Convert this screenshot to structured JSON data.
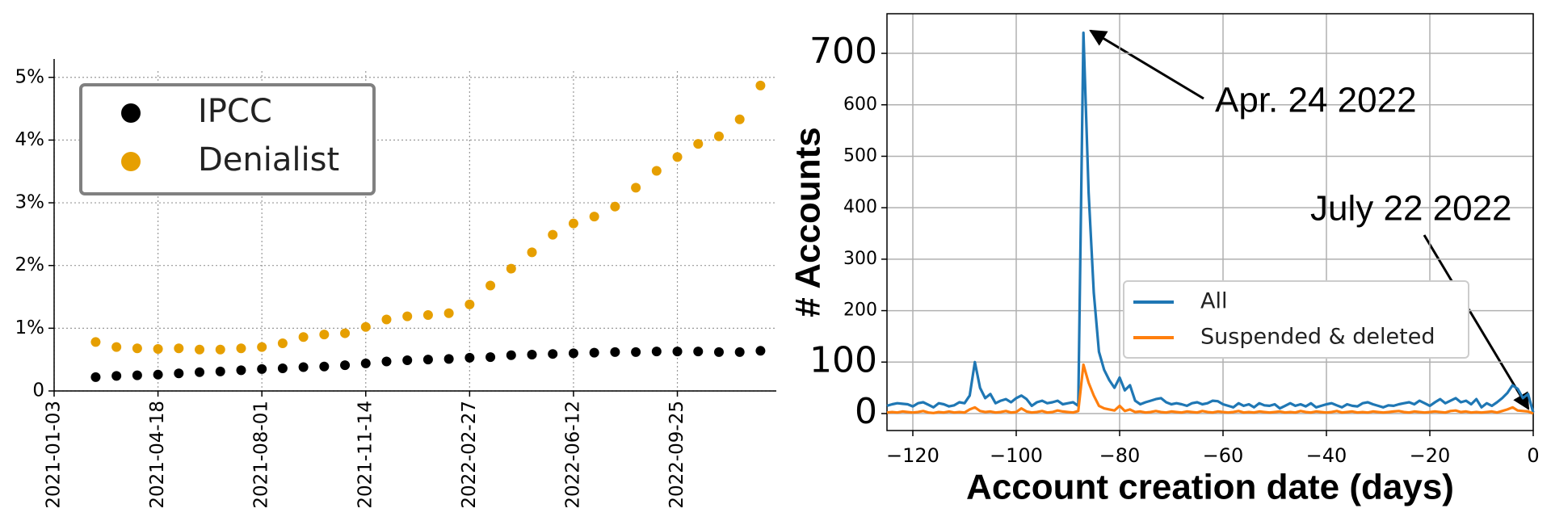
{
  "chart_data": [
    {
      "type": "scatter",
      "x": [
        "2021-02-14",
        "2021-03-07",
        "2021-03-28",
        "2021-04-18",
        "2021-05-09",
        "2021-05-30",
        "2021-06-20",
        "2021-07-11",
        "2021-08-01",
        "2021-08-22",
        "2021-09-12",
        "2021-10-03",
        "2021-10-24",
        "2021-11-14",
        "2021-12-05",
        "2021-12-26",
        "2022-01-16",
        "2022-02-06",
        "2022-02-27",
        "2022-03-20",
        "2022-04-10",
        "2022-05-01",
        "2022-05-22",
        "2022-06-12",
        "2022-07-03",
        "2022-07-24",
        "2022-08-14",
        "2022-09-04",
        "2022-09-25",
        "2022-10-16",
        "2022-11-06",
        "2022-11-27",
        "2022-12-18"
      ],
      "series": [
        {
          "name": "IPCC",
          "color": "#000000",
          "values": [
            0.22,
            0.24,
            0.25,
            0.26,
            0.28,
            0.3,
            0.31,
            0.33,
            0.35,
            0.36,
            0.38,
            0.39,
            0.41,
            0.44,
            0.47,
            0.49,
            0.5,
            0.51,
            0.53,
            0.54,
            0.57,
            0.58,
            0.59,
            0.6,
            0.61,
            0.62,
            0.62,
            0.63,
            0.63,
            0.63,
            0.62,
            0.62,
            0.64
          ]
        },
        {
          "name": "Denialist",
          "color": "#e69f00",
          "values": [
            0.78,
            0.7,
            0.68,
            0.67,
            0.68,
            0.66,
            0.66,
            0.68,
            0.7,
            0.76,
            0.86,
            0.9,
            0.92,
            1.02,
            1.14,
            1.19,
            1.21,
            1.24,
            1.38,
            1.68,
            1.95,
            2.21,
            2.49,
            2.67,
            2.78,
            2.94,
            3.24,
            3.51,
            3.73,
            3.94,
            4.06,
            4.33,
            4.87
          ]
        }
      ],
      "xlim": [
        "2021-01-03",
        "2023-01-03"
      ],
      "xticks": [
        "2021-01-03",
        "2021-04-18",
        "2021-08-01",
        "2021-11-14",
        "2022-02-27",
        "2022-06-12",
        "2022-09-25"
      ],
      "ylim": [
        0,
        5.1
      ],
      "yticks": [
        0,
        {
          "value": 1,
          "label": "1%"
        },
        {
          "value": 2,
          "label": "2%"
        },
        {
          "value": 3,
          "label": "3%"
        },
        {
          "value": 4,
          "label": "4%"
        },
        {
          "value": 5,
          "label": "5%"
        }
      ],
      "grid": true,
      "legend": "upper left"
    },
    {
      "type": "line",
      "x": [
        -125,
        -124,
        -123,
        -122,
        -121,
        -120,
        -119,
        -118,
        -117,
        -116,
        -115,
        -114,
        -113,
        -112,
        -111,
        -110,
        -109,
        -108,
        -107,
        -106,
        -105,
        -104,
        -103,
        -102,
        -101,
        -100,
        -99,
        -98,
        -97,
        -96,
        -95,
        -94,
        -93,
        -92,
        -91,
        -90,
        -89,
        -88,
        -87,
        -86,
        -85,
        -84,
        -83,
        -82,
        -81,
        -80,
        -79,
        -78,
        -77,
        -76,
        -75,
        -74,
        -73,
        -72,
        -71,
        -70,
        -69,
        -68,
        -67,
        -66,
        -65,
        -64,
        -63,
        -62,
        -61,
        -60,
        -59,
        -58,
        -57,
        -56,
        -55,
        -54,
        -53,
        -52,
        -51,
        -50,
        -49,
        -48,
        -47,
        -46,
        -45,
        -44,
        -43,
        -42,
        -41,
        -40,
        -39,
        -38,
        -37,
        -36,
        -35,
        -34,
        -33,
        -32,
        -31,
        -30,
        -29,
        -28,
        -27,
        -26,
        -25,
        -24,
        -23,
        -22,
        -21,
        -20,
        -19,
        -18,
        -17,
        -16,
        -15,
        -14,
        -13,
        -12,
        -11,
        -10,
        -9,
        -8,
        -7,
        -6,
        -5,
        -4,
        -3,
        -2,
        -1,
        0
      ],
      "series": [
        {
          "name": "All",
          "color": "#1f77b4",
          "values": [
            15,
            18,
            20,
            19,
            18,
            14,
            20,
            22,
            17,
            12,
            20,
            18,
            14,
            16,
            22,
            20,
            35,
            100,
            50,
            30,
            38,
            20,
            25,
            28,
            22,
            30,
            35,
            28,
            15,
            22,
            25,
            20,
            22,
            25,
            18,
            20,
            22,
            15,
            740,
            430,
            235,
            120,
            85,
            65,
            50,
            70,
            45,
            55,
            25,
            18,
            22,
            25,
            28,
            30,
            22,
            18,
            20,
            18,
            15,
            20,
            22,
            18,
            20,
            25,
            24,
            18,
            15,
            12,
            20,
            15,
            18,
            12,
            20,
            16,
            15,
            18,
            10,
            15,
            20,
            15,
            18,
            14,
            20,
            12,
            15,
            18,
            20,
            16,
            12,
            18,
            15,
            14,
            20,
            22,
            18,
            15,
            12,
            16,
            15,
            18,
            20,
            22,
            18,
            25,
            20,
            15,
            22,
            28,
            20,
            25,
            30,
            22,
            25,
            18,
            28,
            12,
            20,
            15,
            22,
            30,
            40,
            55,
            48,
            30,
            38,
            2
          ]
        },
        {
          "name": "Suspended & deleted",
          "color": "#ff7f0e",
          "values": [
            2,
            3,
            2,
            4,
            3,
            2,
            3,
            5,
            2,
            1,
            3,
            2,
            4,
            2,
            3,
            2,
            8,
            12,
            5,
            3,
            4,
            2,
            3,
            5,
            2,
            3,
            10,
            4,
            2,
            3,
            5,
            2,
            3,
            6,
            4,
            3,
            2,
            5,
            95,
            60,
            35,
            15,
            10,
            8,
            6,
            15,
            5,
            8,
            3,
            4,
            2,
            3,
            5,
            3,
            2,
            4,
            3,
            2,
            4,
            3,
            2,
            5,
            3,
            2,
            4,
            3,
            2,
            3,
            5,
            2,
            3,
            2,
            4,
            3,
            2,
            3,
            4,
            2,
            3,
            2,
            5,
            3,
            2,
            4,
            3,
            2,
            3,
            5,
            2,
            3,
            4,
            2,
            3,
            2,
            4,
            3,
            2,
            3,
            4,
            5,
            3,
            2,
            4,
            3,
            2,
            3,
            4,
            3,
            2,
            5,
            6,
            3,
            4,
            2,
            3,
            2,
            3,
            4,
            2,
            5,
            8,
            12,
            6,
            5,
            4,
            0
          ]
        }
      ],
      "xlim": [
        -125,
        0
      ],
      "xticks": [
        {
          "value": -120,
          "label": "−120"
        },
        {
          "value": -100,
          "label": "−100"
        },
        {
          "value": -80,
          "label": "−80"
        },
        {
          "value": -60,
          "label": "−60"
        },
        {
          "value": -40,
          "label": "−40"
        },
        {
          "value": -20,
          "label": "−20"
        },
        0
      ],
      "ylim": [
        -33,
        777
      ],
      "yticks": [
        0,
        100,
        200,
        300,
        400,
        500,
        600,
        700
      ],
      "xlabel": "Account creation date (days)",
      "ylabel": "# Accounts",
      "annotations": [
        "Apr. 24 2022",
        "July 22 2022"
      ],
      "grid": true,
      "legend": "center right"
    }
  ]
}
